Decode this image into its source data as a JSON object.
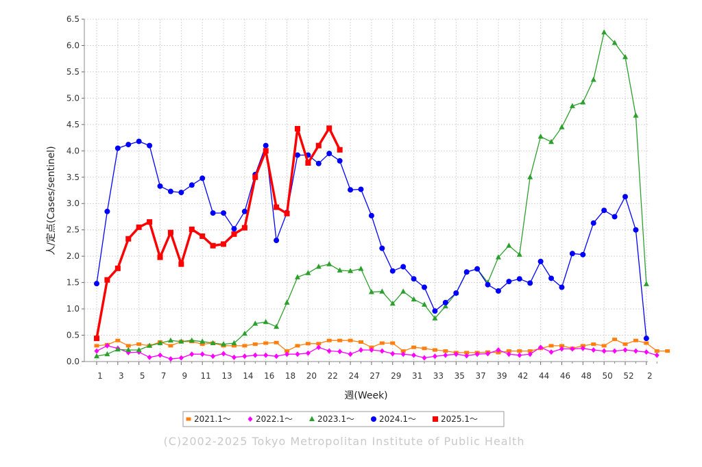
{
  "chart_data": {
    "type": "line",
    "xlabel": "週(Week)",
    "ylabel": "人/定点(Cases/sentinel)",
    "ylim": [
      0,
      6.5
    ],
    "yticks": [
      "0.0",
      "0.5",
      "1.0",
      "1.5",
      "2.0",
      "2.5",
      "3.0",
      "3.5",
      "4.0",
      "4.5",
      "5.0",
      "5.5",
      "6.0",
      "6.5"
    ],
    "xticks": [
      "1",
      "3",
      "5",
      "7",
      "9",
      "11",
      "13",
      "14",
      "16",
      "18",
      "20",
      "22",
      "24",
      "27",
      "29",
      "31",
      "33",
      "35",
      "37",
      "39",
      "42",
      "44",
      "46",
      "48",
      "50",
      "52",
      "2"
    ],
    "grid": true,
    "legend_position": "bottom",
    "credit": "(C)2002-2025 Tokyo Metropolitan Institute of Public Health",
    "series": [
      {
        "name": "2021.1～",
        "color": "#ff7f0e",
        "marker": "square-small",
        "values": [
          0.3,
          0.32,
          0.4,
          0.3,
          0.33,
          0.3,
          0.37,
          0.3,
          0.38,
          0.38,
          0.33,
          0.35,
          0.3,
          0.3,
          0.3,
          0.33,
          0.35,
          0.36,
          0.2,
          0.3,
          0.34,
          0.34,
          0.4,
          0.4,
          0.4,
          0.37,
          0.27,
          0.35,
          0.35,
          0.2,
          0.27,
          0.25,
          0.22,
          0.2,
          0.17,
          0.17,
          0.17,
          0.18,
          0.17,
          0.2,
          0.2,
          0.2,
          0.25,
          0.3,
          0.3,
          0.25,
          0.3,
          0.33,
          0.3,
          0.42,
          0.33,
          0.4,
          0.35,
          0.2,
          0.2
        ]
      },
      {
        "name": "2022.1～",
        "color": "#ff00ff",
        "marker": "diamond",
        "values": [
          0.2,
          0.3,
          0.25,
          0.17,
          0.18,
          0.08,
          0.12,
          0.05,
          0.07,
          0.14,
          0.14,
          0.1,
          0.15,
          0.08,
          0.1,
          0.12,
          0.12,
          0.1,
          0.14,
          0.14,
          0.16,
          0.27,
          0.2,
          0.19,
          0.14,
          0.22,
          0.22,
          0.2,
          0.15,
          0.14,
          0.12,
          0.07,
          0.1,
          0.12,
          0.14,
          0.11,
          0.14,
          0.15,
          0.22,
          0.14,
          0.12,
          0.14,
          0.27,
          0.18,
          0.24,
          0.24,
          0.25,
          0.22,
          0.2,
          0.2,
          0.22,
          0.2,
          0.18,
          0.12
        ]
      },
      {
        "name": "2023.1～",
        "color": "#2ca02c",
        "marker": "triangle",
        "values": [
          0.1,
          0.14,
          0.23,
          0.22,
          0.22,
          0.3,
          0.35,
          0.4,
          0.38,
          0.4,
          0.38,
          0.35,
          0.33,
          0.35,
          0.53,
          0.72,
          0.75,
          0.66,
          1.12,
          1.6,
          1.68,
          1.8,
          1.85,
          1.73,
          1.72,
          1.76,
          1.32,
          1.33,
          1.1,
          1.33,
          1.18,
          1.08,
          0.82,
          1.05,
          1.3,
          1.7,
          1.76,
          1.5,
          1.98,
          2.2,
          2.03,
          3.5,
          4.27,
          4.17,
          4.45,
          4.85,
          4.92,
          5.35,
          6.25,
          6.05,
          5.78,
          4.67,
          1.47
        ]
      },
      {
        "name": "2024.1～",
        "color": "#0000ff",
        "marker": "circle",
        "values": [
          1.48,
          2.85,
          4.05,
          4.12,
          4.18,
          4.1,
          3.33,
          3.23,
          3.21,
          3.35,
          3.48,
          2.82,
          2.82,
          2.52,
          2.85,
          3.55,
          4.1,
          2.3,
          2.83,
          3.92,
          3.92,
          3.76,
          3.95,
          3.81,
          3.26,
          3.27,
          2.77,
          2.15,
          1.72,
          1.8,
          1.57,
          1.41,
          0.96,
          1.12,
          1.3,
          1.7,
          1.76,
          1.46,
          1.34,
          1.52,
          1.57,
          1.49,
          1.9,
          1.58,
          1.41,
          2.05,
          2.03,
          2.63,
          2.87,
          2.75,
          3.13,
          2.5,
          0.44
        ]
      },
      {
        "name": "2025.1～",
        "color": "#ff0000",
        "marker": "square",
        "values": [
          0.44,
          1.55,
          1.77,
          2.33,
          2.55,
          2.65,
          1.98,
          2.45,
          1.85,
          2.51,
          2.38,
          2.2,
          2.23,
          2.42,
          2.54,
          3.5,
          4.0,
          2.93,
          2.81,
          4.42,
          3.77,
          4.1,
          4.43,
          4.02
        ]
      }
    ]
  }
}
